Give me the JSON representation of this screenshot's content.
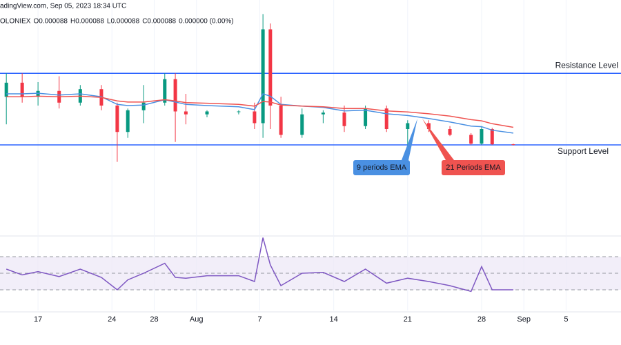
{
  "chart_data": [
    {
      "type": "candlestick",
      "source": "adingView.com, Sep 05, 2023 18:34 UTC",
      "symbol_line": [
        "OLONIEX",
        "O0.000088",
        "H0.000088",
        "L0.000088",
        "C0.000088",
        "0.000000 (0.00%)"
      ],
      "x": [
        14,
        15.5,
        17,
        19,
        21,
        23,
        24.5,
        25.5,
        27,
        29,
        30,
        31,
        33,
        36,
        37.5,
        38.3,
        39,
        40,
        42,
        44,
        46,
        48,
        50,
        52,
        54,
        56,
        58,
        59,
        60,
        62
      ],
      "open": [
        9.65e-05,
        9.89e-05,
        9.65e-05,
        9.75e-05,
        9.55e-05,
        9.78e-05,
        9.5e-05,
        9.05e-05,
        9.42e-05,
        9.55e-05,
        9.95e-05,
        9.4e-05,
        9.35e-05,
        9.4e-05,
        9.4e-05,
        9.2e-05,
        0.000108,
        9.5e-05,
        9e-05,
        9.35e-05,
        9.38e-05,
        9.15e-05,
        9.45e-05,
        9.1e-05,
        9.2e-05,
        9.1e-05,
        9e-05,
        8.85e-05,
        9.1e-05,
        8.84e-05
      ],
      "high": [
        0.0001005,
        0.0001005,
        9.9e-05,
        0.0001,
        9.85e-05,
        9.85e-05,
        9.55e-05,
        9.45e-05,
        9.85e-05,
        0.0001005,
        0.0001005,
        9.7e-05,
        9.42e-05,
        9.42e-05,
        9.55e-05,
        0.0001106,
        0.000109,
        9.65e-05,
        9.45e-05,
        9.42e-05,
        9.5e-05,
        9.5e-05,
        9.5e-05,
        9.25e-05,
        9.25e-05,
        9.15e-05,
        9.03e-05,
        9.15e-05,
        9.12e-05,
        8.85e-05
      ],
      "low": [
        9.18e-05,
        9.55e-05,
        9.5e-05,
        9.45e-05,
        9.5e-05,
        9.42e-05,
        8.54e-05,
        8.95e-05,
        9.2e-05,
        9.5e-05,
        8.88e-05,
        9.18e-05,
        9.3e-05,
        9.35e-05,
        9.1e-05,
        8.95e-05,
        9.1e-05,
        8.95e-05,
        8.95e-05,
        9.2e-05,
        9.05e-05,
        9.1e-05,
        9.05e-05,
        8.8e-05,
        9.05e-05,
        8.98e-05,
        8.83e-05,
        8.83e-05,
        8.83e-05,
        8.82e-05
      ],
      "close": [
        9.89e-05,
        9.65e-05,
        9.75e-05,
        9.55e-05,
        9.78e-05,
        9.5e-05,
        9.05e-05,
        9.42e-05,
        9.55e-05,
        9.95e-05,
        9.4e-05,
        9.35e-05,
        9.4e-05,
        9.4e-05,
        9.2e-05,
        0.000108,
        9.5e-05,
        9e-05,
        9.35e-05,
        9.38e-05,
        9.15e-05,
        9.45e-05,
        9.1e-05,
        9.2e-05,
        9.1e-05,
        9e-05,
        8.85e-05,
        9.1e-05,
        8.84e-05,
        8.83e-05
      ],
      "up_color": "#089981",
      "down_color": "#f23645",
      "series": [
        {
          "name": "9 periods EMA",
          "color": "#4a90e2",
          "values": [
            9.7e-05,
            9.7e-05,
            9.71e-05,
            9.68e-05,
            9.7e-05,
            9.65e-05,
            9.52e-05,
            9.5e-05,
            9.51e-05,
            9.6e-05,
            9.56e-05,
            9.52e-05,
            9.5e-05,
            9.48e-05,
            9.43e-05,
            9.7e-05,
            9.66e-05,
            9.52e-05,
            9.49e-05,
            9.47e-05,
            9.41e-05,
            9.42e-05,
            9.36e-05,
            9.33e-05,
            9.28e-05,
            9.22e-05,
            9.15e-05,
            9.14e-05,
            9.08e-05,
            9.03e-05
          ]
        },
        {
          "name": "21 Periods EMA",
          "color": "#ef5350",
          "values": [
            9.65e-05,
            9.65e-05,
            9.66e-05,
            9.65e-05,
            9.66e-05,
            9.64e-05,
            9.58e-05,
            9.56e-05,
            9.56e-05,
            9.6e-05,
            9.58e-05,
            9.55e-05,
            9.54e-05,
            9.52e-05,
            9.49e-05,
            9.57e-05,
            9.56e-05,
            9.51e-05,
            9.49e-05,
            9.48e-05,
            9.45e-05,
            9.45e-05,
            9.41e-05,
            9.39e-05,
            9.36e-05,
            9.32e-05,
            9.26e-05,
            9.24e-05,
            9.19e-05,
            9.13e-05
          ]
        }
      ],
      "levels": [
        {
          "label": "Resistance Level",
          "value": 0.0001005,
          "color": "#2962ff",
          "label_color": "#f23645"
        },
        {
          "label": "Support Level",
          "value": 8.83e-05,
          "color": "#2962ff",
          "label_color": "#2962ff"
        }
      ],
      "xlim": [
        13.4,
        72.2
      ],
      "xticks": [
        17,
        24,
        28,
        {
          "value": 32,
          "label": "Aug"
        },
        {
          "value": 38,
          "label": "7"
        },
        {
          "value": 45,
          "label": "14"
        },
        {
          "value": 52,
          "label": "21"
        },
        {
          "value": 59,
          "label": "28"
        },
        {
          "value": 63,
          "label": "Sep"
        },
        {
          "value": 67,
          "label": "5"
        }
      ],
      "ylim": [
        7.3e-05,
        0.000113
      ]
    },
    {
      "type": "line",
      "series": [
        {
          "color": "#7e57c2",
          "values": [
            55,
            48,
            52,
            46,
            55,
            45,
            30,
            42,
            50,
            62,
            45,
            44,
            47,
            47,
            40,
            93,
            60,
            35,
            50,
            51,
            40,
            55,
            38,
            44,
            40,
            35,
            28,
            58,
            30,
            30
          ]
        }
      ],
      "levels": [
        70,
        50,
        30
      ],
      "band_color": "#ede7f6",
      "ylim": [
        5,
        92.5
      ]
    }
  ]
}
